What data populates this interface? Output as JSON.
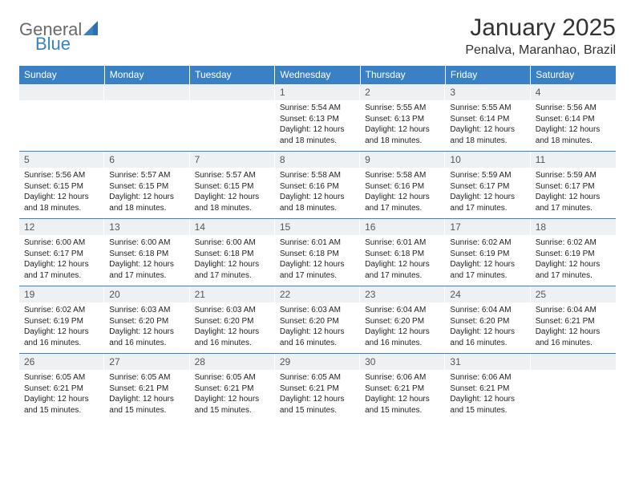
{
  "logo": {
    "text1": "General",
    "text2": "Blue"
  },
  "title": "January 2025",
  "location": "Penalva, Maranhao, Brazil",
  "colors": {
    "header_bg": "#3a80c4",
    "daynum_bg": "#eef1f4",
    "border": "#3a80c4",
    "logo_gray": "#6a6a6a",
    "logo_blue": "#3a80c4",
    "text": "#222222"
  },
  "day_headers": [
    "Sunday",
    "Monday",
    "Tuesday",
    "Wednesday",
    "Thursday",
    "Friday",
    "Saturday"
  ],
  "weeks": [
    [
      {
        "n": "",
        "lines": []
      },
      {
        "n": "",
        "lines": []
      },
      {
        "n": "",
        "lines": []
      },
      {
        "n": "1",
        "lines": [
          "Sunrise: 5:54 AM",
          "Sunset: 6:13 PM",
          "Daylight: 12 hours",
          "and 18 minutes."
        ]
      },
      {
        "n": "2",
        "lines": [
          "Sunrise: 5:55 AM",
          "Sunset: 6:13 PM",
          "Daylight: 12 hours",
          "and 18 minutes."
        ]
      },
      {
        "n": "3",
        "lines": [
          "Sunrise: 5:55 AM",
          "Sunset: 6:14 PM",
          "Daylight: 12 hours",
          "and 18 minutes."
        ]
      },
      {
        "n": "4",
        "lines": [
          "Sunrise: 5:56 AM",
          "Sunset: 6:14 PM",
          "Daylight: 12 hours",
          "and 18 minutes."
        ]
      }
    ],
    [
      {
        "n": "5",
        "lines": [
          "Sunrise: 5:56 AM",
          "Sunset: 6:15 PM",
          "Daylight: 12 hours",
          "and 18 minutes."
        ]
      },
      {
        "n": "6",
        "lines": [
          "Sunrise: 5:57 AM",
          "Sunset: 6:15 PM",
          "Daylight: 12 hours",
          "and 18 minutes."
        ]
      },
      {
        "n": "7",
        "lines": [
          "Sunrise: 5:57 AM",
          "Sunset: 6:15 PM",
          "Daylight: 12 hours",
          "and 18 minutes."
        ]
      },
      {
        "n": "8",
        "lines": [
          "Sunrise: 5:58 AM",
          "Sunset: 6:16 PM",
          "Daylight: 12 hours",
          "and 18 minutes."
        ]
      },
      {
        "n": "9",
        "lines": [
          "Sunrise: 5:58 AM",
          "Sunset: 6:16 PM",
          "Daylight: 12 hours",
          "and 17 minutes."
        ]
      },
      {
        "n": "10",
        "lines": [
          "Sunrise: 5:59 AM",
          "Sunset: 6:17 PM",
          "Daylight: 12 hours",
          "and 17 minutes."
        ]
      },
      {
        "n": "11",
        "lines": [
          "Sunrise: 5:59 AM",
          "Sunset: 6:17 PM",
          "Daylight: 12 hours",
          "and 17 minutes."
        ]
      }
    ],
    [
      {
        "n": "12",
        "lines": [
          "Sunrise: 6:00 AM",
          "Sunset: 6:17 PM",
          "Daylight: 12 hours",
          "and 17 minutes."
        ]
      },
      {
        "n": "13",
        "lines": [
          "Sunrise: 6:00 AM",
          "Sunset: 6:18 PM",
          "Daylight: 12 hours",
          "and 17 minutes."
        ]
      },
      {
        "n": "14",
        "lines": [
          "Sunrise: 6:00 AM",
          "Sunset: 6:18 PM",
          "Daylight: 12 hours",
          "and 17 minutes."
        ]
      },
      {
        "n": "15",
        "lines": [
          "Sunrise: 6:01 AM",
          "Sunset: 6:18 PM",
          "Daylight: 12 hours",
          "and 17 minutes."
        ]
      },
      {
        "n": "16",
        "lines": [
          "Sunrise: 6:01 AM",
          "Sunset: 6:18 PM",
          "Daylight: 12 hours",
          "and 17 minutes."
        ]
      },
      {
        "n": "17",
        "lines": [
          "Sunrise: 6:02 AM",
          "Sunset: 6:19 PM",
          "Daylight: 12 hours",
          "and 17 minutes."
        ]
      },
      {
        "n": "18",
        "lines": [
          "Sunrise: 6:02 AM",
          "Sunset: 6:19 PM",
          "Daylight: 12 hours",
          "and 17 minutes."
        ]
      }
    ],
    [
      {
        "n": "19",
        "lines": [
          "Sunrise: 6:02 AM",
          "Sunset: 6:19 PM",
          "Daylight: 12 hours",
          "and 16 minutes."
        ]
      },
      {
        "n": "20",
        "lines": [
          "Sunrise: 6:03 AM",
          "Sunset: 6:20 PM",
          "Daylight: 12 hours",
          "and 16 minutes."
        ]
      },
      {
        "n": "21",
        "lines": [
          "Sunrise: 6:03 AM",
          "Sunset: 6:20 PM",
          "Daylight: 12 hours",
          "and 16 minutes."
        ]
      },
      {
        "n": "22",
        "lines": [
          "Sunrise: 6:03 AM",
          "Sunset: 6:20 PM",
          "Daylight: 12 hours",
          "and 16 minutes."
        ]
      },
      {
        "n": "23",
        "lines": [
          "Sunrise: 6:04 AM",
          "Sunset: 6:20 PM",
          "Daylight: 12 hours",
          "and 16 minutes."
        ]
      },
      {
        "n": "24",
        "lines": [
          "Sunrise: 6:04 AM",
          "Sunset: 6:20 PM",
          "Daylight: 12 hours",
          "and 16 minutes."
        ]
      },
      {
        "n": "25",
        "lines": [
          "Sunrise: 6:04 AM",
          "Sunset: 6:21 PM",
          "Daylight: 12 hours",
          "and 16 minutes."
        ]
      }
    ],
    [
      {
        "n": "26",
        "lines": [
          "Sunrise: 6:05 AM",
          "Sunset: 6:21 PM",
          "Daylight: 12 hours",
          "and 15 minutes."
        ]
      },
      {
        "n": "27",
        "lines": [
          "Sunrise: 6:05 AM",
          "Sunset: 6:21 PM",
          "Daylight: 12 hours",
          "and 15 minutes."
        ]
      },
      {
        "n": "28",
        "lines": [
          "Sunrise: 6:05 AM",
          "Sunset: 6:21 PM",
          "Daylight: 12 hours",
          "and 15 minutes."
        ]
      },
      {
        "n": "29",
        "lines": [
          "Sunrise: 6:05 AM",
          "Sunset: 6:21 PM",
          "Daylight: 12 hours",
          "and 15 minutes."
        ]
      },
      {
        "n": "30",
        "lines": [
          "Sunrise: 6:06 AM",
          "Sunset: 6:21 PM",
          "Daylight: 12 hours",
          "and 15 minutes."
        ]
      },
      {
        "n": "31",
        "lines": [
          "Sunrise: 6:06 AM",
          "Sunset: 6:21 PM",
          "Daylight: 12 hours",
          "and 15 minutes."
        ]
      },
      {
        "n": "",
        "lines": []
      }
    ]
  ]
}
